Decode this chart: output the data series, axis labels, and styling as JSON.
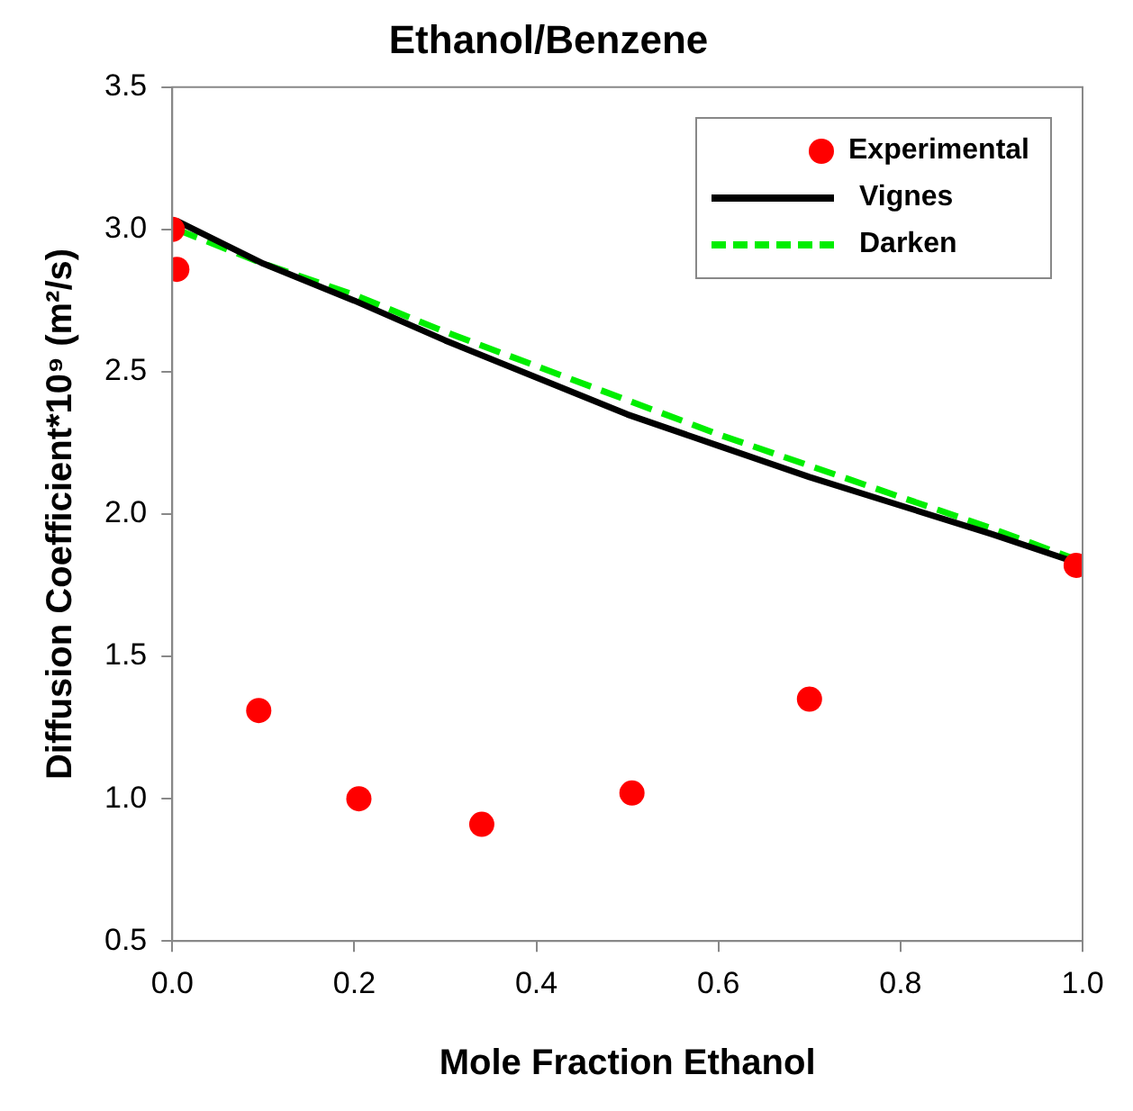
{
  "chart_data": {
    "type": "scatter",
    "title": "Ethanol/Benzene",
    "xlabel": "Mole Fraction Ethanol",
    "ylabel": "Diffusion Coefficient*10⁹ (m²/s)",
    "xlim": [
      0,
      1
    ],
    "xticks": [
      {
        "value": 0,
        "label": "0.0"
      },
      0.2,
      0.4,
      0.6,
      0.8,
      {
        "value": 1,
        "label": "1.0"
      }
    ],
    "ylim": [
      0.5,
      3.5
    ],
    "yticks": [
      0.5,
      {
        "value": 1,
        "label": "1.0"
      },
      1.5,
      {
        "value": 2,
        "label": "2.0"
      },
      2.5,
      {
        "value": 3,
        "label": "3.0"
      },
      3.5
    ],
    "grid": false,
    "legend": "top right",
    "series": [
      {
        "name": "Experimental",
        "type": "scatter",
        "marker": "circle",
        "color": "#ff0000",
        "x": [
          0,
          0.005,
          0.095,
          0.205,
          0.34,
          0.505,
          0.7,
          0.993
        ],
        "values": [
          3.0,
          2.86,
          1.31,
          1.0,
          0.91,
          1.02,
          1.35,
          1.82
        ]
      },
      {
        "name": "Vignes",
        "type": "line",
        "marker": "none",
        "line_style": "solid",
        "color": "#000000",
        "x": [
          0.005,
          0.1,
          0.2,
          0.3,
          0.4,
          0.5,
          0.6,
          0.7,
          0.8,
          0.9,
          0.993
        ],
        "values": [
          3.03,
          2.88,
          2.75,
          2.61,
          2.48,
          2.35,
          2.24,
          2.13,
          2.03,
          1.93,
          1.83
        ]
      },
      {
        "name": "Darken",
        "type": "line",
        "marker": "none",
        "line_style": "dashed",
        "color": "#00ee00",
        "x": [
          0.005,
          0.1,
          0.2,
          0.3,
          0.4,
          0.5,
          0.6,
          0.7,
          0.8,
          0.9,
          0.993
        ],
        "values": [
          3.0,
          2.88,
          2.77,
          2.64,
          2.52,
          2.4,
          2.28,
          2.17,
          2.06,
          1.95,
          1.84
        ]
      }
    ]
  }
}
